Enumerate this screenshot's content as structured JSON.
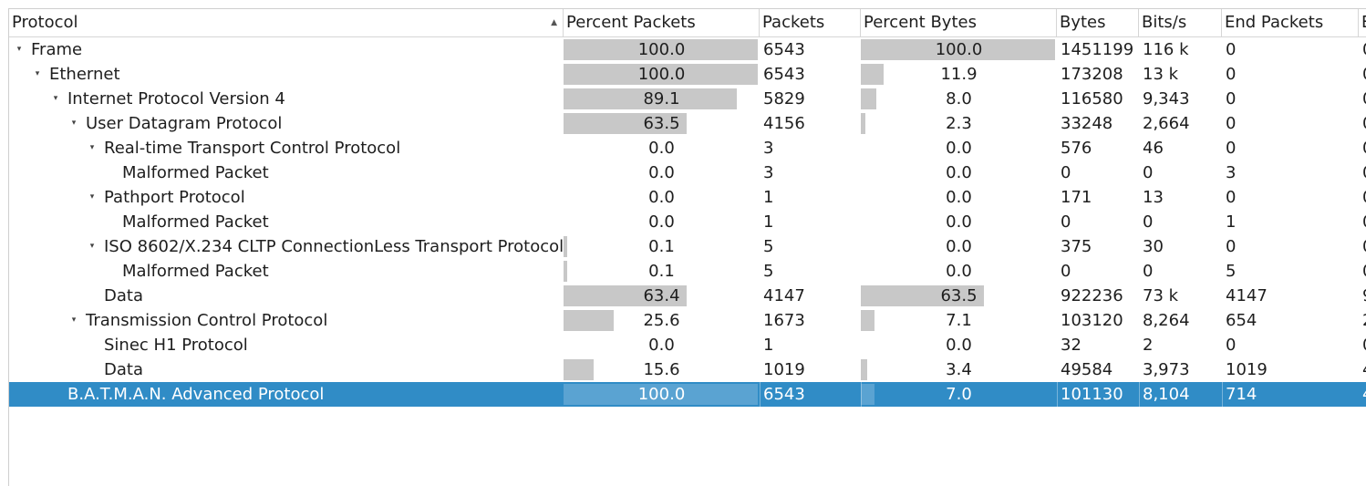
{
  "columns": {
    "protocol": "Protocol",
    "percent_packets": "Percent Packets",
    "packets": "Packets",
    "percent_bytes": "Percent Bytes",
    "bytes": "Bytes",
    "bits_per_s": "Bits/s",
    "end_packets": "End Packets",
    "extra": "E"
  },
  "rows": [
    {
      "protocol": "Frame",
      "level": 0,
      "expandable": true,
      "percent_packets": "100.0",
      "pp_fill": 100,
      "packets": "6543",
      "percent_bytes": "100.0",
      "pb_fill": 100,
      "bytes": "1451199",
      "bits_per_s": "116 k",
      "end_packets": "0",
      "extra": "0"
    },
    {
      "protocol": "Ethernet",
      "level": 1,
      "expandable": true,
      "percent_packets": "100.0",
      "pp_fill": 100,
      "packets": "6543",
      "percent_bytes": "11.9",
      "pb_fill": 11.9,
      "bytes": "173208",
      "bits_per_s": "13 k",
      "end_packets": "0",
      "extra": "0"
    },
    {
      "protocol": "Internet Protocol Version 4",
      "level": 2,
      "expandable": true,
      "percent_packets": "89.1",
      "pp_fill": 89.1,
      "packets": "5829",
      "percent_bytes": "8.0",
      "pb_fill": 8.0,
      "bytes": "116580",
      "bits_per_s": "9,343",
      "end_packets": "0",
      "extra": "0"
    },
    {
      "protocol": "User Datagram Protocol",
      "level": 3,
      "expandable": true,
      "percent_packets": "63.5",
      "pp_fill": 63.5,
      "packets": "4156",
      "percent_bytes": "2.3",
      "pb_fill": 2.3,
      "bytes": "33248",
      "bits_per_s": "2,664",
      "end_packets": "0",
      "extra": "0"
    },
    {
      "protocol": "Real-time Transport Control Protocol",
      "level": 4,
      "expandable": true,
      "percent_packets": "0.0",
      "pp_fill": 0,
      "packets": "3",
      "percent_bytes": "0.0",
      "pb_fill": 0,
      "bytes": "576",
      "bits_per_s": "46",
      "end_packets": "0",
      "extra": "0"
    },
    {
      "protocol": "Malformed Packet",
      "level": 5,
      "expandable": false,
      "percent_packets": "0.0",
      "pp_fill": 0,
      "packets": "3",
      "percent_bytes": "0.0",
      "pb_fill": 0,
      "bytes": "0",
      "bits_per_s": "0",
      "end_packets": "3",
      "extra": "0"
    },
    {
      "protocol": "Pathport Protocol",
      "level": 4,
      "expandable": true,
      "percent_packets": "0.0",
      "pp_fill": 0,
      "packets": "1",
      "percent_bytes": "0.0",
      "pb_fill": 0,
      "bytes": "171",
      "bits_per_s": "13",
      "end_packets": "0",
      "extra": "0"
    },
    {
      "protocol": "Malformed Packet",
      "level": 5,
      "expandable": false,
      "percent_packets": "0.0",
      "pp_fill": 0,
      "packets": "1",
      "percent_bytes": "0.0",
      "pb_fill": 0,
      "bytes": "0",
      "bits_per_s": "0",
      "end_packets": "1",
      "extra": "0"
    },
    {
      "protocol": "ISO 8602/X.234 CLTP ConnectionLess Transport Protocol",
      "level": 4,
      "expandable": true,
      "percent_packets": "0.1",
      "pp_fill": 0.1,
      "packets": "5",
      "percent_bytes": "0.0",
      "pb_fill": 0,
      "bytes": "375",
      "bits_per_s": "30",
      "end_packets": "0",
      "extra": "0"
    },
    {
      "protocol": "Malformed Packet",
      "level": 5,
      "expandable": false,
      "percent_packets": "0.1",
      "pp_fill": 0.1,
      "packets": "5",
      "percent_bytes": "0.0",
      "pb_fill": 0,
      "bytes": "0",
      "bits_per_s": "0",
      "end_packets": "5",
      "extra": "0"
    },
    {
      "protocol": "Data",
      "level": 4,
      "expandable": false,
      "percent_packets": "63.4",
      "pp_fill": 63.4,
      "packets": "4147",
      "percent_bytes": "63.5",
      "pb_fill": 63.5,
      "bytes": "922236",
      "bits_per_s": "73 k",
      "end_packets": "4147",
      "extra": "9"
    },
    {
      "protocol": "Transmission Control Protocol",
      "level": 3,
      "expandable": true,
      "percent_packets": "25.6",
      "pp_fill": 25.6,
      "packets": "1673",
      "percent_bytes": "7.1",
      "pb_fill": 7.1,
      "bytes": "103120",
      "bits_per_s": "8,264",
      "end_packets": "654",
      "extra": "2"
    },
    {
      "protocol": "Sinec H1 Protocol",
      "level": 4,
      "expandable": false,
      "percent_packets": "0.0",
      "pp_fill": 0,
      "packets": "1",
      "percent_bytes": "0.0",
      "pb_fill": 0,
      "bytes": "32",
      "bits_per_s": "2",
      "end_packets": "0",
      "extra": "0"
    },
    {
      "protocol": "Data",
      "level": 4,
      "expandable": false,
      "percent_packets": "15.6",
      "pp_fill": 15.6,
      "packets": "1019",
      "percent_bytes": "3.4",
      "pb_fill": 3.4,
      "bytes": "49584",
      "bits_per_s": "3,973",
      "end_packets": "1019",
      "extra": "4"
    },
    {
      "protocol": "B.A.T.M.A.N. Advanced Protocol",
      "level": 2,
      "expandable": false,
      "selected": true,
      "percent_packets": "100.0",
      "pp_fill": 100,
      "packets": "6543",
      "percent_bytes": "7.0",
      "pb_fill": 7.0,
      "bytes": "101130",
      "bits_per_s": "8,104",
      "end_packets": "714",
      "extra": "4"
    }
  ]
}
